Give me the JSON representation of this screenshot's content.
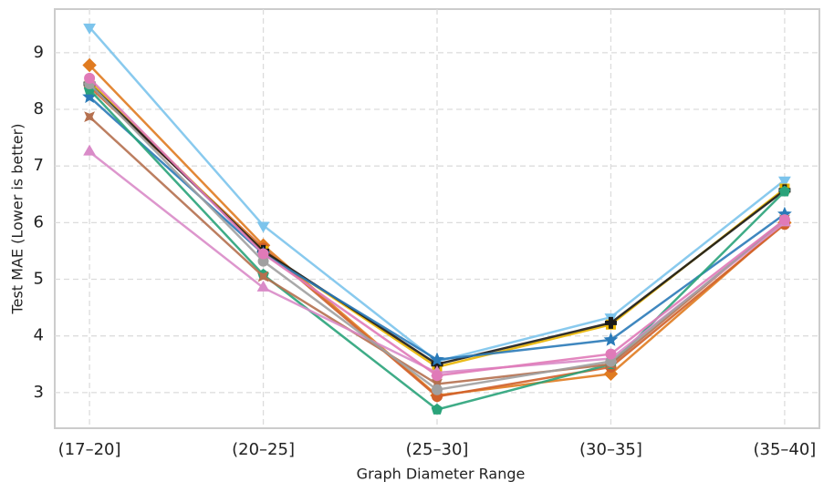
{
  "chart_data": {
    "type": "line",
    "x_label": "Graph Diameter Range",
    "y_label": "Test MAE (Lower is better)",
    "categories": [
      "(17–20]",
      "(20–25]",
      "(25–30]",
      "(30–35]",
      "(35–40]"
    ],
    "ylim": [
      2.37,
      9.77
    ],
    "yticks": [
      3,
      4,
      5,
      6,
      7,
      8,
      9
    ],
    "grid": true,
    "series": [
      {
        "color": "#7cc4ec",
        "marker": "triangle-down",
        "values": [
          9.45,
          5.95,
          3.55,
          4.33,
          6.75
        ]
      },
      {
        "color": "#e07b20",
        "marker": "diamond",
        "values": [
          8.78,
          5.6,
          2.95,
          3.33,
          6.0
        ]
      },
      {
        "color": "#d0602a",
        "marker": "circle",
        "values": [
          8.4,
          5.55,
          2.93,
          3.45,
          5.97
        ]
      },
      {
        "color": "#e8b400",
        "marker": "square",
        "values": [
          8.5,
          5.5,
          3.45,
          4.2,
          6.6
        ]
      },
      {
        "color": "#1a1a1a",
        "marker": "plus",
        "values": [
          8.45,
          5.5,
          3.5,
          4.23,
          6.57
        ]
      },
      {
        "color": "#2a7ab8",
        "marker": "star",
        "values": [
          8.22,
          5.45,
          3.58,
          3.93,
          6.15
        ]
      },
      {
        "color": "#2aa37a",
        "marker": "pentagon",
        "values": [
          8.35,
          5.08,
          2.7,
          3.5,
          6.55
        ]
      },
      {
        "color": "#b5704f",
        "marker": "x",
        "values": [
          7.87,
          5.05,
          3.15,
          3.5,
          6.05
        ]
      },
      {
        "color": "#d98bc8",
        "marker": "triangle-up",
        "values": [
          7.25,
          4.85,
          3.35,
          3.6,
          6.0
        ]
      },
      {
        "color": "#a0a0a0",
        "marker": "circle",
        "values": [
          8.45,
          5.32,
          3.05,
          3.55,
          6.05
        ]
      },
      {
        "color": "#e07ab8",
        "marker": "circle",
        "values": [
          8.55,
          5.45,
          3.3,
          3.68,
          6.05
        ]
      }
    ]
  }
}
